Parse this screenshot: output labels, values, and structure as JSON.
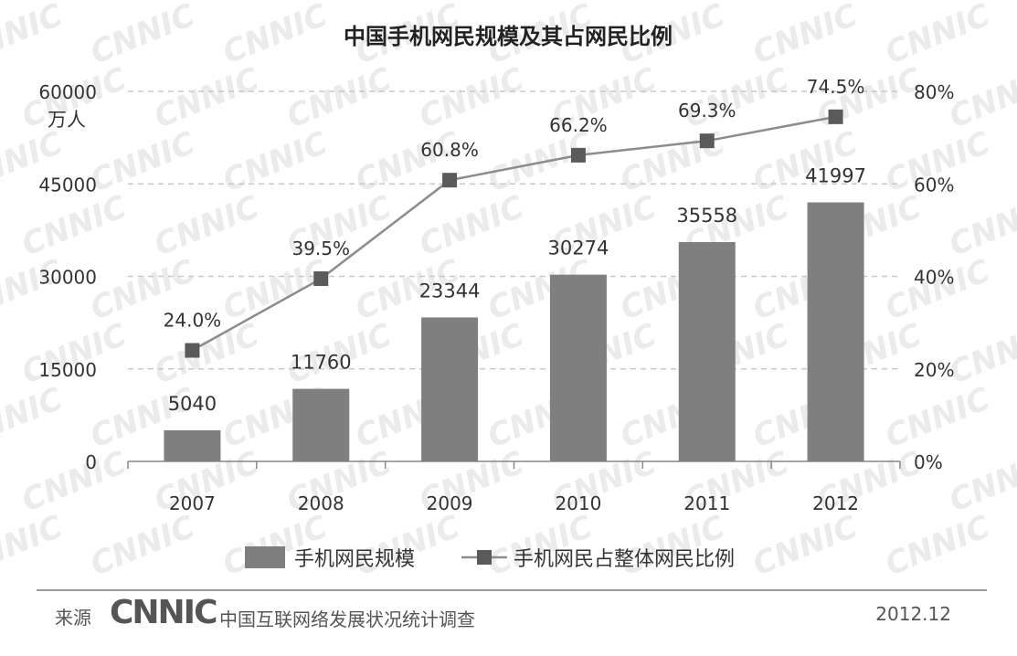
{
  "chart_data": {
    "type": "bar+line",
    "title": "中国手机网民规模及其占网民比例",
    "categories": [
      "2007",
      "2008",
      "2009",
      "2010",
      "2011",
      "2012"
    ],
    "series": [
      {
        "name": "手机网民规模",
        "type": "bar",
        "axis": "left",
        "values": [
          5040,
          11760,
          23344,
          30274,
          35558,
          41997
        ],
        "labels": [
          "5040",
          "11760",
          "23344",
          "30274",
          "35558",
          "41997"
        ]
      },
      {
        "name": "手机网民占整体网民比例",
        "type": "line",
        "axis": "right",
        "values": [
          24.0,
          39.5,
          60.8,
          66.2,
          69.3,
          74.5
        ],
        "labels": [
          "24.0%",
          "39.5%",
          "60.8%",
          "66.2%",
          "69.3%",
          "74.5%"
        ]
      }
    ],
    "yleft": {
      "ylim": [
        0,
        60000
      ],
      "ticks": [
        "0",
        "15000",
        "30000",
        "45000",
        "60000"
      ],
      "unit": "万人"
    },
    "yright": {
      "ylim": [
        0,
        80
      ],
      "ticks": [
        "0%",
        "20%",
        "40%",
        "60%",
        "80%"
      ]
    },
    "grid": true,
    "legend": "bottom",
    "colors": {
      "bar": "#7f7f7f",
      "line": "#8c8c8c",
      "marker": "#5a5a5a",
      "grid": "#c8c8c8"
    }
  },
  "watermark": "CNNIC",
  "footer": {
    "source_label": "来源",
    "logo": "CNNIC",
    "org": "中国互联网络发展状况统计调查",
    "date": "2012.12"
  }
}
